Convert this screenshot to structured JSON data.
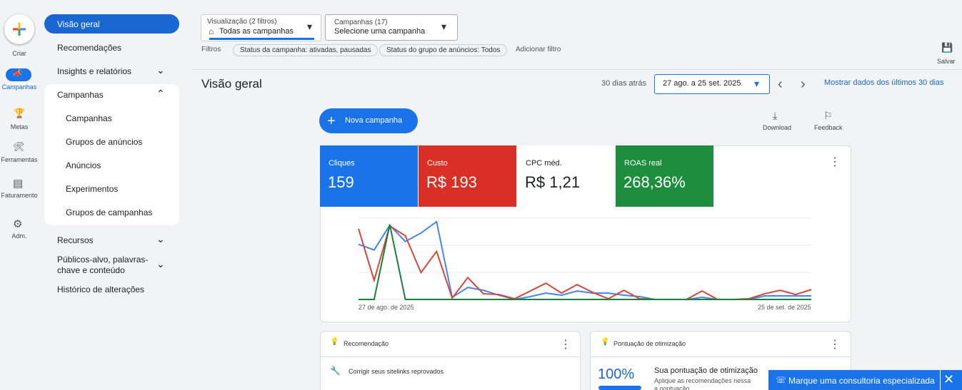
{
  "rail": [
    "Criar",
    "Campanhas",
    "Metas",
    "Ferramentas",
    "Faturamento",
    "Adm."
  ],
  "nav": [
    "Visão geral",
    "Recomendações",
    "Insights e relatórios",
    "Campanhas",
    "Campanhas",
    "Grupos de anúncios",
    "Anúncios",
    "Experimentos",
    "Grupos de campanhas",
    "Recursos",
    "Públicos-alvo, palavras-chave e conteúdo",
    "Histórico de alterações"
  ],
  "toolbar": {
    "view_label": "Visualização (2 filtros)",
    "view_value": "Todas as campanhas",
    "campaigns_label": "Campanhas (17)",
    "campaigns_value": "Selecione uma campanha",
    "filters_label": "Filtros",
    "filters": [
      "Status da campanha: ativadas, pausadas",
      "Status do grupo de anúncios: Todos"
    ],
    "add_filter": "Adicionar filtro",
    "save": "Salvar"
  },
  "header": {
    "title": "Visão geral",
    "range_label": "30 dias atrás",
    "range": "27 ago. a 25 set. 2025",
    "show_last": "Mostrar dados dos últimos 30 dias"
  },
  "actions": {
    "new_campaign": "Nova campanha",
    "download": "Download",
    "feedback": "Feedback"
  },
  "metrics": [
    {
      "label": "Cliques",
      "value": "159",
      "color": "#1a73e8"
    },
    {
      "label": "Custo",
      "value": "R$ 193",
      "color": "#d93025"
    },
    {
      "label": "CPC méd.",
      "value": "R$ 1,21",
      "color": "#ffffff"
    },
    {
      "label": "ROAS real",
      "value": "268,36%",
      "color": "#1e8e3e"
    }
  ],
  "chart_data": {
    "type": "line",
    "x_start": "27 de ago. de 2025",
    "x_end": "25 de set. de 2025",
    "ylim": [
      0,
      115
    ],
    "series": [
      {
        "color": "#4285f4",
        "values": [
          78,
          70,
          105,
          82,
          94,
          110,
          3,
          17,
          13,
          6,
          0,
          4,
          9,
          6,
          12,
          9,
          9,
          6,
          4,
          0,
          0,
          0,
          3,
          0,
          0,
          0,
          5,
          5,
          5,
          5
        ]
      },
      {
        "color": "#db4437",
        "values": [
          100,
          27,
          104,
          90,
          38,
          68,
          2,
          31,
          8,
          7,
          1,
          12,
          23,
          9,
          21,
          10,
          1,
          13,
          1,
          0,
          0,
          0,
          12,
          0,
          0,
          1,
          8,
          13,
          7,
          14
        ]
      },
      {
        "color": "#188038",
        "values": [
          0,
          0,
          106,
          0,
          0,
          0,
          0,
          0,
          0,
          0,
          0,
          0,
          0,
          0,
          0,
          0,
          0,
          0,
          0,
          0,
          0,
          0,
          0,
          0,
          0,
          0,
          0,
          0,
          0,
          0
        ]
      }
    ]
  },
  "cards": {
    "recommendation": {
      "title": "Recomendação",
      "item": "Corrigir seus sitelinks reprovados"
    },
    "score": {
      "title": "Pontuação de otimização",
      "value": "100%",
      "heading": "Sua pontuação de otimização",
      "text": "Aplique as recomendações nessa",
      "text2": "a pontuação"
    }
  },
  "banner": "Marque uma consultoria especializada"
}
